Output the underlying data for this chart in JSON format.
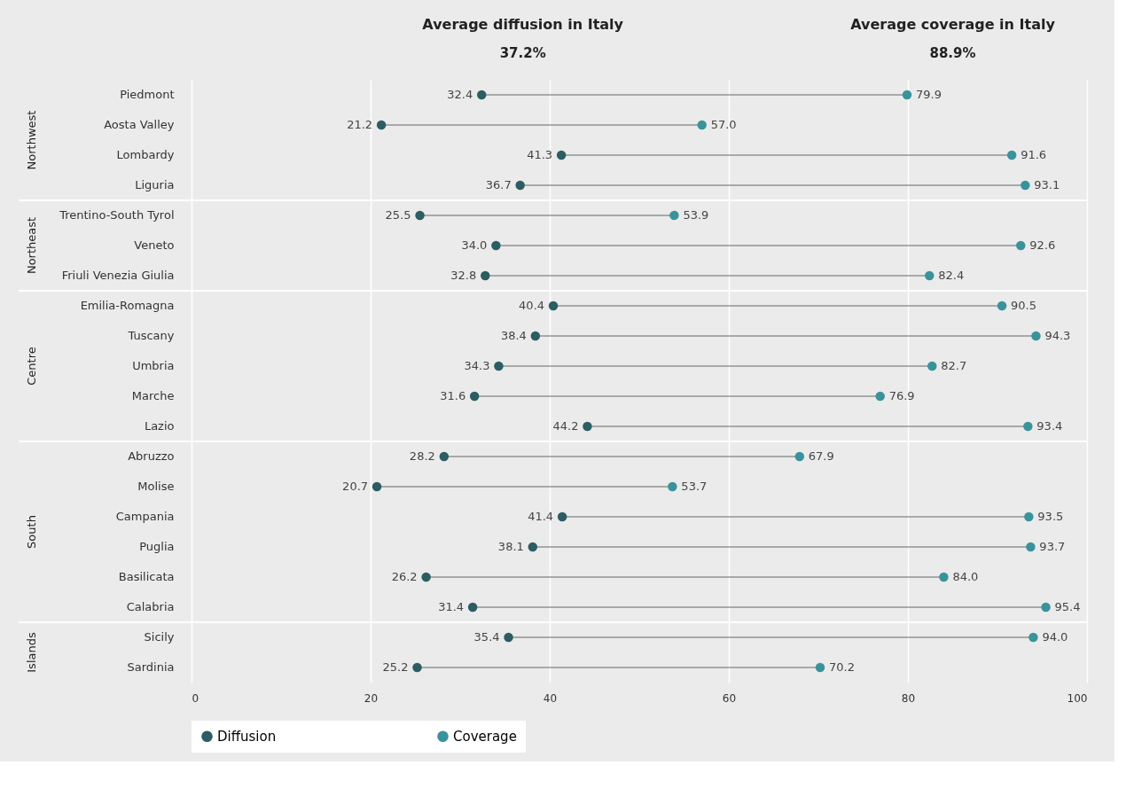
{
  "chart_data": {
    "type": "scatter",
    "orientation": "horizontal",
    "categories": [
      "Piedmont",
      "Aosta Valley",
      "Lombardy",
      "Liguria",
      "Trentino-South Tyrol",
      "Veneto",
      "Friuli Venezia Giulia",
      "Emilia-Romagna",
      "Tuscany",
      "Umbria",
      "Marche",
      "Lazio",
      "Abruzzo",
      "Molise",
      "Campania",
      "Puglia",
      "Basilicata",
      "Calabria",
      "Sicily",
      "Sardinia"
    ],
    "series": [
      {
        "name": "Diffusion",
        "color": "#2b5d62",
        "values": [
          32.4,
          21.2,
          41.3,
          36.7,
          25.5,
          34.0,
          32.8,
          40.4,
          38.4,
          34.3,
          31.6,
          44.2,
          28.2,
          20.7,
          41.4,
          38.1,
          26.2,
          31.4,
          35.4,
          25.2
        ],
        "value_labels": [
          "32.4",
          "21.2",
          "41.3",
          "36.7",
          "25.5",
          "34.0",
          "32.8",
          "40.4",
          "38.4",
          "34.3",
          "31.6",
          "44.2",
          "28.2",
          "20.7",
          "41.4",
          "38.1",
          "26.2",
          "31.4",
          "35.4",
          "25.2"
        ]
      },
      {
        "name": "Coverage",
        "color": "#3a939b",
        "values": [
          79.9,
          57.0,
          91.6,
          93.1,
          53.9,
          92.6,
          82.4,
          90.5,
          94.3,
          82.7,
          76.9,
          93.4,
          67.9,
          53.7,
          93.5,
          93.7,
          84.0,
          95.4,
          94.0,
          70.2
        ],
        "value_labels": [
          "79.9",
          "57.0",
          "91.6",
          "93.1",
          "53.9",
          "92.6",
          "82.4",
          "90.5",
          "94.3",
          "82.7",
          "76.9",
          "93.4",
          "67.9",
          "53.7",
          "93.5",
          "93.7",
          "84.0",
          "95.4",
          "94.0",
          "70.2"
        ]
      }
    ],
    "xlim": [
      0,
      100
    ],
    "xticks": [
      0,
      20,
      40,
      60,
      80,
      100
    ],
    "grid": "x",
    "legend": "bottom",
    "marker": "circle",
    "annotations": [
      "Average diffusion in Italy",
      "37.2%",
      "Average coverage in Italy",
      "88.9%",
      "Northwest",
      "Northeast",
      "Centre",
      "South",
      "Islands"
    ]
  }
}
